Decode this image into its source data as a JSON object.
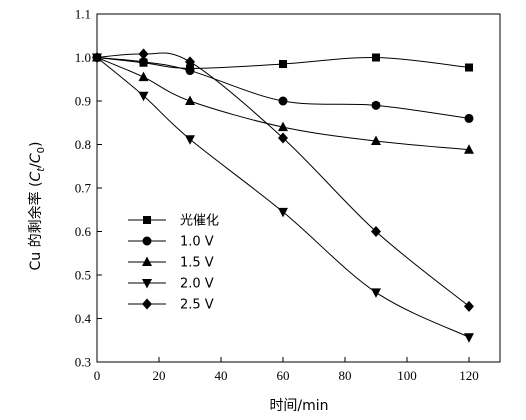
{
  "chart_data": {
    "type": "line",
    "xlabel": "时间/min",
    "ylabel": "Cu 的剩余率 (Ct/C0)",
    "ylabel_parts": {
      "prefix": "Cu 的剩余率 (",
      "c": "C",
      "sub_t": "t",
      "slash": "/",
      "sub_0": "0",
      "suffix": ")"
    },
    "xlim": [
      0,
      130
    ],
    "ylim": [
      0.3,
      1.1
    ],
    "xticks": [
      0,
      20,
      40,
      60,
      80,
      100,
      120
    ],
    "yticks": [
      0.3,
      0.4,
      0.5,
      0.6,
      0.7,
      0.8,
      0.9,
      1.0,
      1.1
    ],
    "ytick_labels": [
      "0.3",
      "0.4",
      "0.5",
      "0.6",
      "0.7",
      "0.8",
      "0.9",
      "1.0",
      "1.1"
    ],
    "legend_position": "left",
    "series": [
      {
        "name": "光催化",
        "marker": "square",
        "x": [
          0,
          15,
          30,
          60,
          90,
          120
        ],
        "y": [
          1.0,
          0.988,
          0.975,
          0.985,
          1.0,
          0.977
        ]
      },
      {
        "name": "1.0 V",
        "marker": "circle",
        "x": [
          0,
          15,
          30,
          60,
          90,
          120
        ],
        "y": [
          1.0,
          0.99,
          0.97,
          0.9,
          0.89,
          0.86
        ]
      },
      {
        "name": "1.5 V",
        "marker": "triangle-up",
        "x": [
          0,
          15,
          30,
          60,
          90,
          120
        ],
        "y": [
          1.0,
          0.955,
          0.9,
          0.84,
          0.808,
          0.788
        ]
      },
      {
        "name": "2.0 V",
        "marker": "triangle-down",
        "x": [
          0,
          15,
          30,
          60,
          90,
          120
        ],
        "y": [
          1.0,
          0.912,
          0.812,
          0.645,
          0.46,
          0.357
        ]
      },
      {
        "name": "2.5 V",
        "marker": "diamond",
        "x": [
          0,
          15,
          30,
          60,
          90,
          120
        ],
        "y": [
          1.0,
          1.008,
          0.99,
          0.815,
          0.6,
          0.428
        ]
      }
    ]
  }
}
